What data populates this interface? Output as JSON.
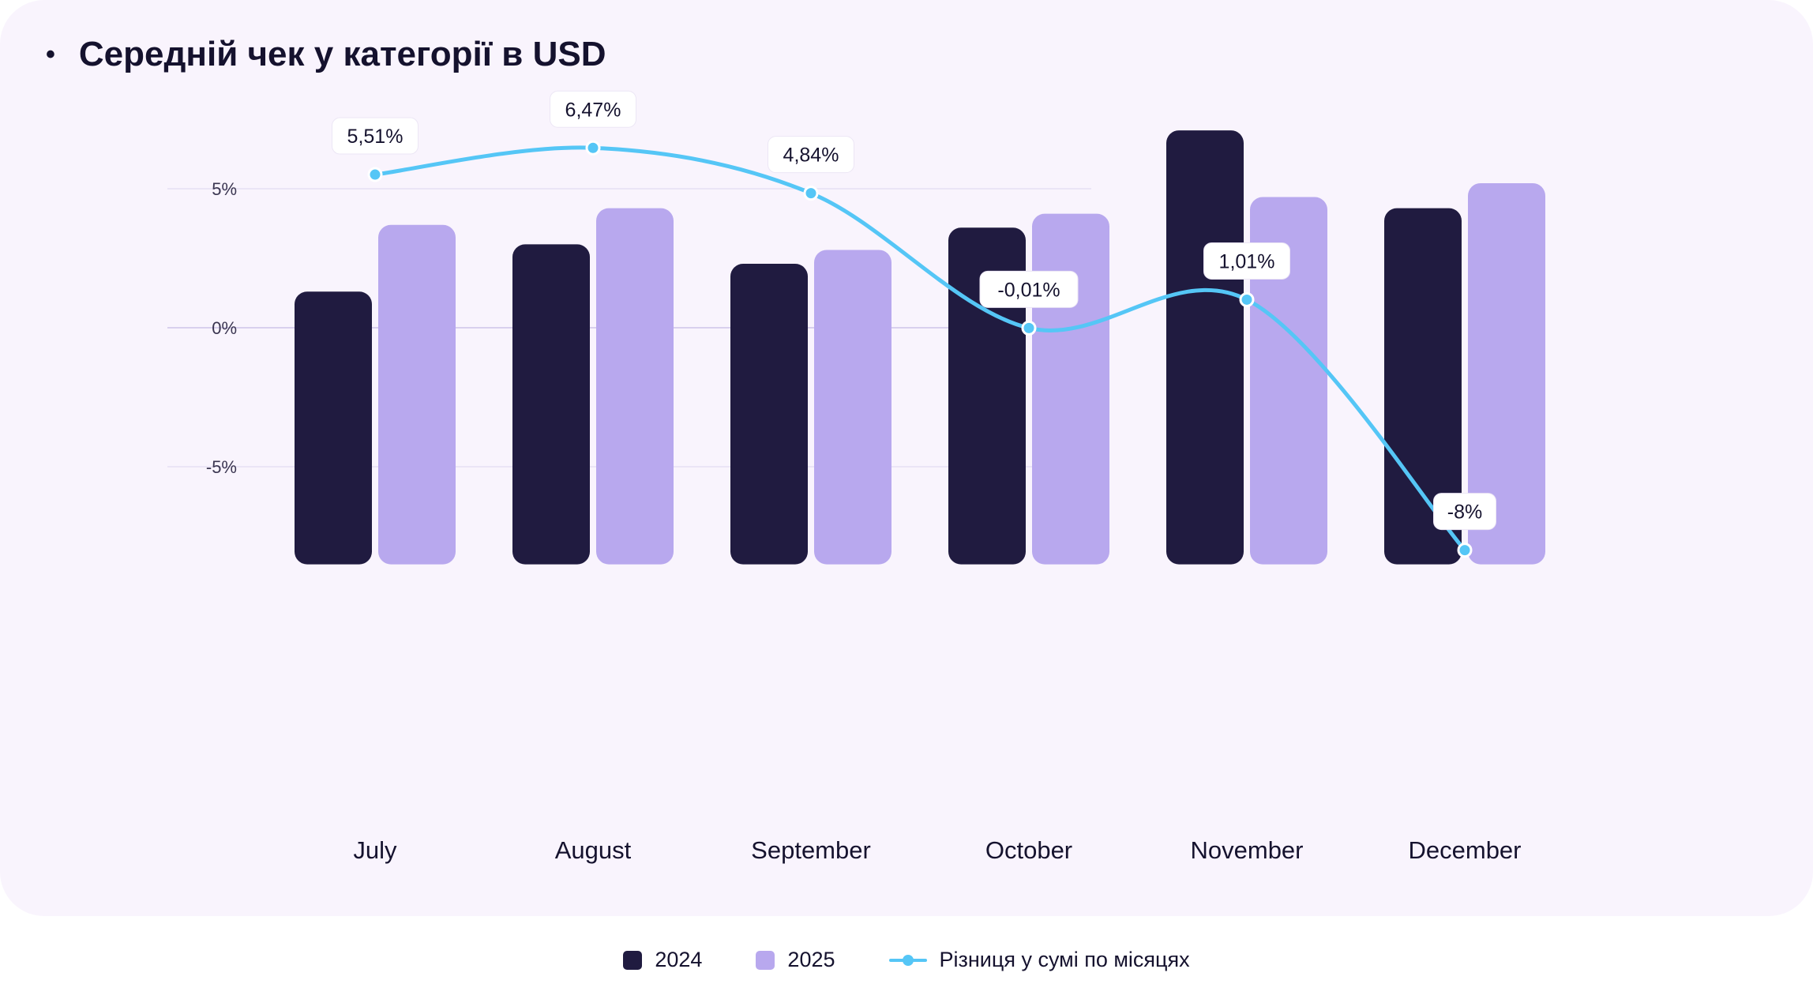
{
  "chart_data": {
    "type": "bar",
    "title": "Середній чек у категорії в USD",
    "title_bullet": "•",
    "categories": [
      "July",
      "August",
      "September",
      "October",
      "November",
      "December"
    ],
    "series": [
      {
        "name": "2024",
        "type": "bar",
        "color": "#201b40",
        "values": [
          1.3,
          3.0,
          2.3,
          3.6,
          7.1,
          4.3
        ]
      },
      {
        "name": "2025",
        "type": "bar",
        "color": "#b8a8ee",
        "values": [
          3.7,
          4.3,
          2.8,
          4.1,
          4.7,
          5.2
        ]
      },
      {
        "name": "Різниця у сумі по місяцях",
        "type": "line",
        "color": "#55c6f6",
        "values": [
          5.51,
          6.47,
          4.84,
          -0.01,
          1.01,
          -8.0
        ],
        "labels": [
          "5,51%",
          "6,47%",
          "4,84%",
          "-0,01%",
          "1,01%",
          "-8%"
        ]
      }
    ],
    "yticks": [
      {
        "value": 5,
        "label": "5%"
      },
      {
        "value": 0,
        "label": "0%"
      },
      {
        "value": -5,
        "label": "-5%"
      }
    ],
    "ylim": [
      -8,
      7.5
    ],
    "grid": true,
    "legend_position": "bottom"
  }
}
